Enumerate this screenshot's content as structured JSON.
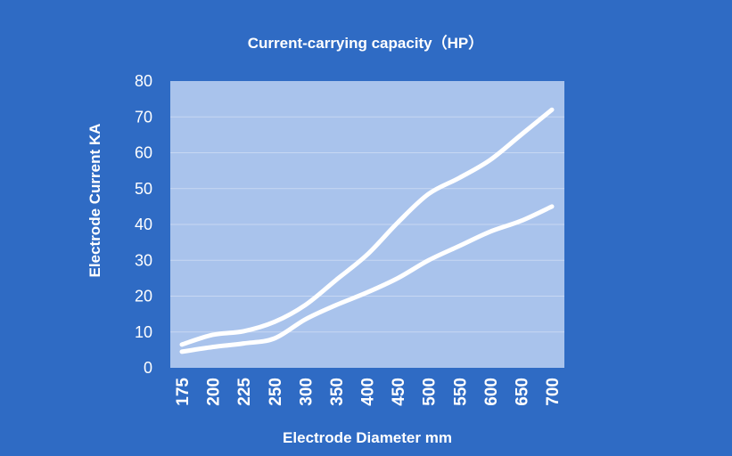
{
  "chart_data": {
    "type": "line",
    "title": "Current-carrying capacity（HP）",
    "xlabel": "Electrode Diameter mm",
    "ylabel": "Electrode Current KA",
    "categories": [
      "175",
      "200",
      "225",
      "250",
      "300",
      "350",
      "400",
      "450",
      "500",
      "550",
      "600",
      "650",
      "700"
    ],
    "series": [
      {
        "values": [
          6.5,
          9.2,
          10.2,
          12.8,
          17.5,
          24.5,
          31.5,
          40.5,
          48.5,
          53,
          58,
          65,
          72
        ]
      },
      {
        "values": [
          4.5,
          5.8,
          6.8,
          8.2,
          13.5,
          17.5,
          21,
          25,
          30,
          34,
          38,
          41,
          45
        ]
      }
    ],
    "ylim": [
      0,
      80
    ],
    "yticks": [
      0,
      10,
      20,
      30,
      40,
      50,
      60,
      70,
      80
    ],
    "grid": true,
    "legend": "none",
    "colors": {
      "background": "#2f6bc4",
      "plot_area": "#a9c3ec",
      "line": "#ffffff",
      "grid": "#c7d7f2"
    }
  }
}
